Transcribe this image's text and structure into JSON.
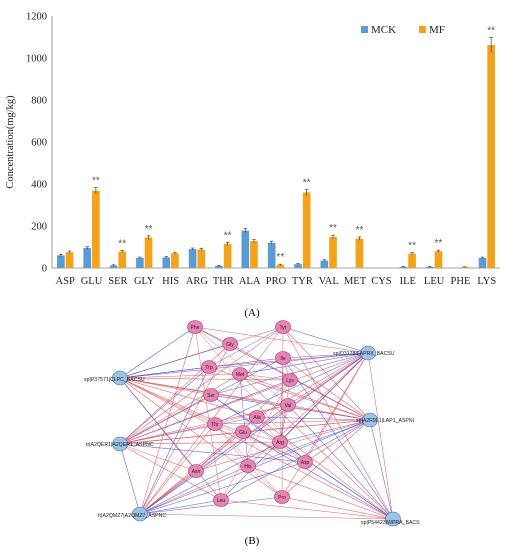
{
  "chart_data": [
    {
      "type": "bar",
      "ylabel": "Concentration(mg/kg)",
      "ylim": [
        0,
        1200
      ],
      "yticks": [
        0,
        200,
        400,
        600,
        800,
        1000,
        1200
      ],
      "categories": [
        "ASP",
        "GLU",
        "SER",
        "GLY",
        "HIS",
        "ARG",
        "THR",
        "ALA",
        "PRO",
        "TYR",
        "VAL",
        "MET",
        "CYS",
        "ILE",
        "LEU",
        "PHE",
        "LYS"
      ],
      "series": [
        {
          "name": "MCK",
          "color": "#5B9BD5",
          "values": [
            60,
            95,
            12,
            48,
            50,
            90,
            10,
            178,
            120,
            18,
            35,
            0,
            0,
            5,
            5,
            0,
            48
          ],
          "errors": [
            5,
            6,
            3,
            4,
            4,
            5,
            2,
            10,
            8,
            3,
            4,
            0,
            0,
            2,
            2,
            0,
            4
          ]
        },
        {
          "name": "MF",
          "color": "#F5A21B",
          "values": [
            75,
            368,
            78,
            145,
            70,
            88,
            115,
            128,
            15,
            360,
            148,
            140,
            0,
            68,
            80,
            5,
            1062
          ],
          "errors": [
            6,
            15,
            5,
            8,
            5,
            6,
            7,
            7,
            3,
            15,
            8,
            8,
            0,
            5,
            5,
            1,
            35
          ]
        }
      ],
      "significance": [
        {
          "category": "GLU",
          "label": "**"
        },
        {
          "category": "SER",
          "label": "**"
        },
        {
          "category": "GLY",
          "label": "**"
        },
        {
          "category": "THR",
          "label": "**"
        },
        {
          "category": "PRO",
          "label": "**"
        },
        {
          "category": "TYR",
          "label": "**"
        },
        {
          "category": "VAL",
          "label": "**"
        },
        {
          "category": "MET",
          "label": "**"
        },
        {
          "category": "ILE",
          "label": "**"
        },
        {
          "category": "LEU",
          "label": "**"
        },
        {
          "category": "LYS",
          "label": "**"
        }
      ],
      "legend_position": "top-right",
      "grid": false,
      "panel_label": "(A)"
    },
    {
      "type": "network",
      "panel_label": "(B)",
      "protein_nodes": [
        "sp|P37571|CLPC_BACSU",
        "tr|A2QER1|A2QER1_ASPNC",
        "tr|A2QMZ7|A2QMZ7_ASPNC",
        "sp|O31788|APRX_BACSU",
        "sp|A2R9L1|LAP1_ASPNI",
        "sp|P54423|WPRA_BACS"
      ],
      "amino_acid_nodes": [
        "Phe",
        "Tyr",
        "Gly",
        "Trp",
        "Met",
        "Ile",
        "Lys",
        "Ser",
        "Val",
        "Ala",
        "Thr",
        "Glu",
        "Arg",
        "Asp",
        "His",
        "Asn",
        "Leu",
        "Pro"
      ],
      "edge_colors": {
        "positive": "#E0474C",
        "negative": "#3F46D6"
      }
    }
  ]
}
